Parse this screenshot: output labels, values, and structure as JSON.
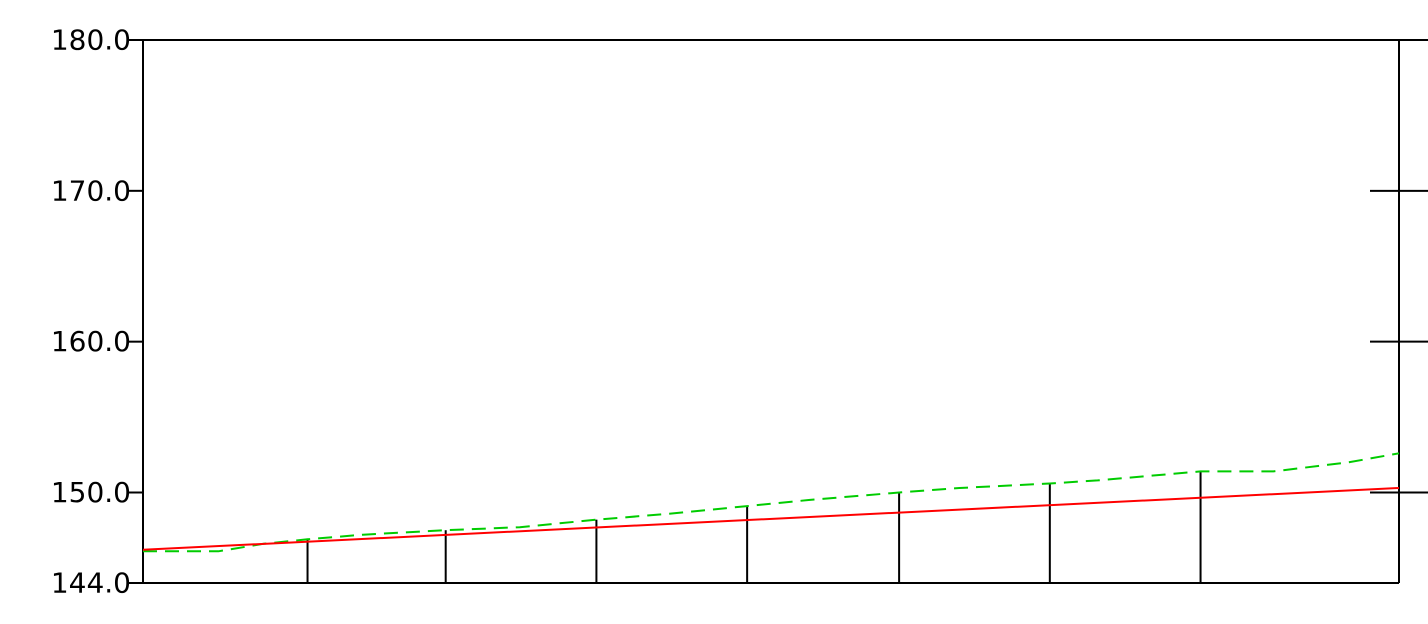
{
  "chart_data": {
    "type": "line",
    "title": "",
    "xlabel": "",
    "ylabel": "",
    "ylim": [
      144.0,
      180.0
    ],
    "yticks": [
      180.0,
      170.0,
      160.0,
      150.0,
      144.0
    ],
    "ytick_labels": [
      "180.0",
      "170.0",
      "160.0",
      "150.0",
      "144.0"
    ],
    "xlim": [
      0,
      1000
    ],
    "stations": [
      131,
      241,
      361,
      481,
      602,
      722,
      842,
      1000
    ],
    "series": [
      {
        "color": "#00cc00",
        "dash": "dashed",
        "x": [
          0,
          30,
          60,
          96,
          131,
          175,
          241,
          300,
          361,
          420,
          481,
          530,
          602,
          650,
          722,
          760,
          842,
          900,
          960,
          1000
        ],
        "y": [
          146.1,
          146.1,
          146.1,
          146.6,
          146.9,
          147.2,
          147.5,
          147.7,
          148.2,
          148.6,
          149.1,
          149.5,
          150.0,
          150.3,
          150.6,
          150.8,
          151.4,
          151.4,
          152.0,
          152.6
        ]
      },
      {
        "color": "#ff0000",
        "dash": "solid",
        "x": [
          0,
          1000
        ],
        "y": [
          146.2,
          150.3
        ]
      }
    ],
    "grid": false,
    "right_axis_ticks": [
      170.0,
      160.0,
      150.0
    ]
  }
}
